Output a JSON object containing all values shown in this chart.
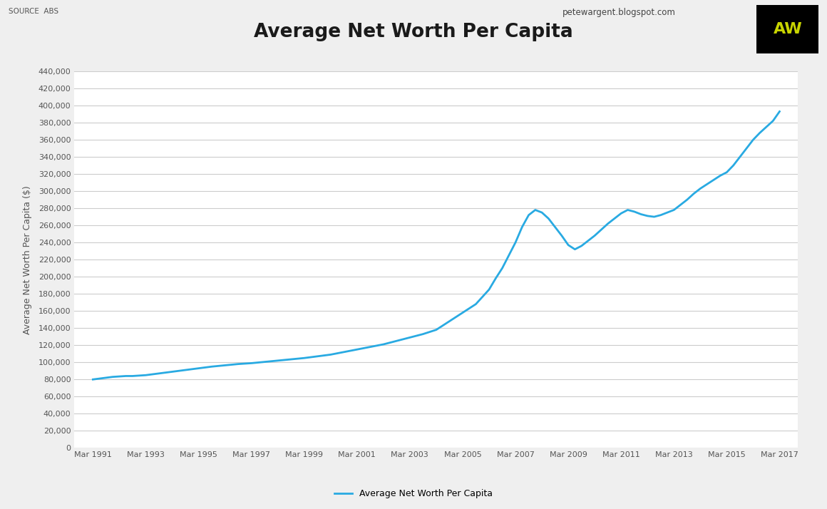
{
  "title": "Average Net Worth Per Capita",
  "source_text": "SOURCE  ABS",
  "blog_text": "petewargent.blogspot.com",
  "ylabel": "Average Net Worth Per Capita ($)",
  "legend_label": "Average Net Worth Per Capita",
  "background_color": "#efefef",
  "plot_bg_color": "#ffffff",
  "line_color": "#29aae2",
  "ylim": [
    0,
    440000
  ],
  "ytick_step": 20000,
  "x_labels": [
    "Mar 1991",
    "Mar 1993",
    "Mar 1995",
    "Mar 1997",
    "Mar 1999",
    "Mar 2001",
    "Mar 2003",
    "Mar 2005",
    "Mar 2007",
    "Mar 2009",
    "Mar 2011",
    "Mar 2013",
    "Mar 2015",
    "Mar 2017"
  ],
  "x_tick_pos": [
    1991,
    1993,
    1995,
    1997,
    1999,
    2001,
    2003,
    2005,
    2007,
    2009,
    2011,
    2013,
    2015,
    2017
  ],
  "years": [
    1991.0,
    1991.25,
    1991.5,
    1991.75,
    1992.0,
    1992.25,
    1992.5,
    1992.75,
    1993.0,
    1993.5,
    1994.0,
    1994.5,
    1995.0,
    1995.5,
    1996.0,
    1996.5,
    1997.0,
    1997.5,
    1998.0,
    1998.5,
    1999.0,
    1999.5,
    2000.0,
    2000.5,
    2001.0,
    2001.5,
    2002.0,
    2002.5,
    2003.0,
    2003.5,
    2004.0,
    2004.5,
    2005.0,
    2005.5,
    2006.0,
    2006.25,
    2006.5,
    2006.75,
    2007.0,
    2007.25,
    2007.5,
    2007.75,
    2008.0,
    2008.25,
    2008.5,
    2008.75,
    2009.0,
    2009.25,
    2009.5,
    2009.75,
    2010.0,
    2010.25,
    2010.5,
    2010.75,
    2011.0,
    2011.25,
    2011.5,
    2011.75,
    2012.0,
    2012.25,
    2012.5,
    2012.75,
    2013.0,
    2013.25,
    2013.5,
    2013.75,
    2014.0,
    2014.25,
    2014.5,
    2014.75,
    2015.0,
    2015.25,
    2015.5,
    2015.75,
    2016.0,
    2016.25,
    2016.5,
    2016.75,
    2017.0
  ],
  "values": [
    80000,
    81000,
    82000,
    83000,
    83500,
    84000,
    84000,
    84500,
    85000,
    87000,
    89000,
    91000,
    93000,
    95000,
    96500,
    98000,
    99000,
    100500,
    102000,
    103500,
    105000,
    107000,
    109000,
    112000,
    115000,
    118000,
    121000,
    125000,
    129000,
    133000,
    138000,
    148000,
    158000,
    168000,
    185000,
    198000,
    210000,
    225000,
    240000,
    258000,
    272000,
    278000,
    275000,
    268000,
    258000,
    248000,
    237000,
    232000,
    236000,
    242000,
    248000,
    255000,
    262000,
    268000,
    274000,
    278000,
    276000,
    273000,
    271000,
    270000,
    272000,
    275000,
    278000,
    284000,
    290000,
    297000,
    303000,
    308000,
    313000,
    318000,
    322000,
    330000,
    340000,
    350000,
    360000,
    368000,
    375000,
    382000,
    393000
  ]
}
